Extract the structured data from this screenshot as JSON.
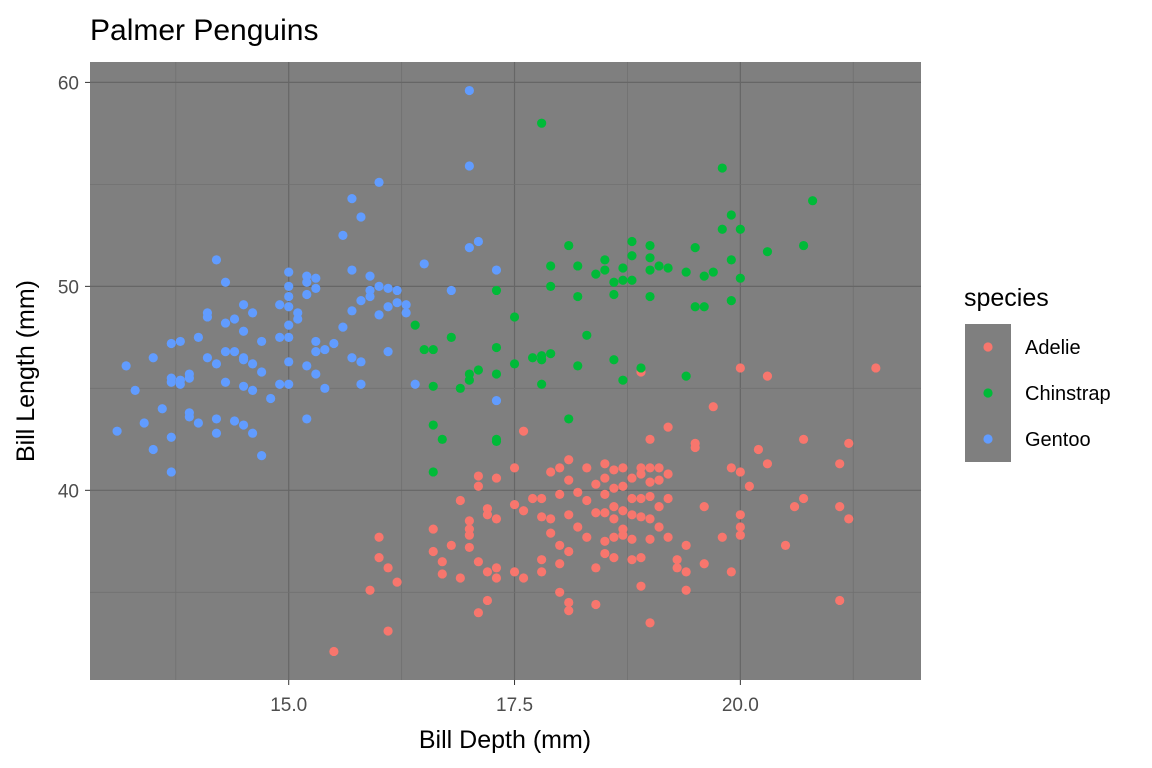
{
  "chart_data": {
    "type": "scatter",
    "title": "Palmer Penguins",
    "xlabel": "Bill Depth (mm)",
    "ylabel": "Bill Length (mm)",
    "xlim": [
      12.8,
      22.0
    ],
    "ylim": [
      30.7,
      61.0
    ],
    "x_ticks": [
      15.0,
      17.5,
      20.0
    ],
    "x_tick_labels": [
      "15.0",
      "17.5",
      "20.0"
    ],
    "y_ticks": [
      40,
      50,
      60
    ],
    "y_tick_labels": [
      "40",
      "50",
      "60"
    ],
    "grid": true,
    "panel_background": "#7f7f7f",
    "legend": {
      "title": "species",
      "position": "right",
      "background": "#7f7f7f"
    },
    "series": [
      {
        "name": "Adelie",
        "color": "#F8766D",
        "points": [
          [
            15.5,
            32.1
          ],
          [
            16.1,
            33.1
          ],
          [
            16.2,
            35.5
          ],
          [
            15.9,
            35.1
          ],
          [
            16.0,
            36.7
          ],
          [
            16.1,
            36.2
          ],
          [
            16.0,
            37.7
          ],
          [
            16.6,
            38.1
          ],
          [
            16.6,
            37.0
          ],
          [
            16.7,
            36.5
          ],
          [
            16.7,
            35.9
          ],
          [
            16.9,
            39.5
          ],
          [
            17.0,
            38.5
          ],
          [
            17.0,
            38.1
          ],
          [
            17.1,
            40.2
          ],
          [
            17.1,
            40.7
          ],
          [
            17.2,
            39.1
          ],
          [
            17.2,
            38.8
          ],
          [
            17.3,
            38.6
          ],
          [
            17.3,
            40.6
          ],
          [
            17.0,
            37.8
          ],
          [
            17.0,
            37.2
          ],
          [
            17.1,
            36.5
          ],
          [
            17.2,
            36.0
          ],
          [
            17.3,
            36.2
          ],
          [
            17.3,
            35.7
          ],
          [
            17.1,
            34.0
          ],
          [
            17.2,
            34.6
          ],
          [
            16.9,
            35.7
          ],
          [
            16.8,
            37.3
          ],
          [
            17.5,
            36.0
          ],
          [
            17.5,
            39.3
          ],
          [
            17.5,
            41.1
          ],
          [
            17.6,
            39.0
          ],
          [
            17.6,
            42.9
          ],
          [
            17.6,
            35.7
          ],
          [
            17.7,
            39.6
          ],
          [
            17.8,
            39.6
          ],
          [
            17.8,
            38.7
          ],
          [
            17.8,
            36.6
          ],
          [
            17.8,
            36.0
          ],
          [
            17.9,
            37.9
          ],
          [
            17.9,
            38.6
          ],
          [
            17.9,
            40.9
          ],
          [
            18.0,
            39.8
          ],
          [
            18.0,
            37.3
          ],
          [
            18.0,
            36.4
          ],
          [
            18.0,
            35.0
          ],
          [
            18.0,
            41.1
          ],
          [
            18.1,
            41.5
          ],
          [
            18.1,
            40.5
          ],
          [
            18.1,
            38.8
          ],
          [
            18.1,
            37.0
          ],
          [
            18.1,
            34.5
          ],
          [
            18.1,
            34.1
          ],
          [
            18.2,
            39.9
          ],
          [
            18.2,
            38.2
          ],
          [
            18.3,
            41.1
          ],
          [
            18.3,
            39.5
          ],
          [
            18.3,
            37.7
          ],
          [
            18.4,
            40.3
          ],
          [
            18.4,
            38.9
          ],
          [
            18.4,
            36.2
          ],
          [
            18.4,
            34.4
          ],
          [
            18.5,
            41.3
          ],
          [
            18.5,
            40.6
          ],
          [
            18.5,
            39.8
          ],
          [
            18.5,
            38.9
          ],
          [
            18.5,
            37.5
          ],
          [
            18.5,
            36.9
          ],
          [
            18.6,
            41.0
          ],
          [
            18.6,
            40.1
          ],
          [
            18.6,
            39.2
          ],
          [
            18.6,
            38.6
          ],
          [
            18.6,
            37.7
          ],
          [
            18.6,
            36.7
          ],
          [
            18.7,
            41.1
          ],
          [
            18.7,
            40.2
          ],
          [
            18.7,
            39.0
          ],
          [
            18.7,
            38.1
          ],
          [
            18.7,
            37.8
          ],
          [
            18.8,
            40.6
          ],
          [
            18.8,
            39.6
          ],
          [
            18.8,
            38.8
          ],
          [
            18.8,
            37.6
          ],
          [
            18.8,
            36.6
          ],
          [
            18.9,
            41.1
          ],
          [
            18.9,
            40.8
          ],
          [
            18.9,
            39.6
          ],
          [
            18.9,
            38.7
          ],
          [
            18.9,
            36.7
          ],
          [
            18.9,
            35.3
          ],
          [
            18.9,
            45.8
          ],
          [
            19.0,
            42.5
          ],
          [
            19.0,
            41.1
          ],
          [
            19.0,
            40.4
          ],
          [
            19.0,
            39.7
          ],
          [
            19.0,
            38.6
          ],
          [
            19.0,
            37.6
          ],
          [
            19.0,
            33.5
          ],
          [
            19.1,
            41.1
          ],
          [
            19.1,
            40.5
          ],
          [
            19.1,
            39.2
          ],
          [
            19.1,
            38.2
          ],
          [
            19.2,
            43.1
          ],
          [
            19.2,
            40.8
          ],
          [
            19.2,
            39.6
          ],
          [
            19.2,
            37.7
          ],
          [
            19.3,
            36.6
          ],
          [
            19.3,
            36.2
          ],
          [
            19.4,
            37.3
          ],
          [
            19.4,
            36.0
          ],
          [
            19.4,
            35.1
          ],
          [
            19.5,
            42.1
          ],
          [
            19.5,
            42.3
          ],
          [
            19.6,
            39.2
          ],
          [
            19.6,
            36.4
          ],
          [
            19.7,
            44.1
          ],
          [
            19.8,
            37.7
          ],
          [
            19.9,
            36.0
          ],
          [
            19.9,
            41.1
          ],
          [
            20.0,
            40.9
          ],
          [
            20.0,
            38.8
          ],
          [
            20.0,
            38.2
          ],
          [
            20.0,
            37.8
          ],
          [
            20.0,
            46.0
          ],
          [
            20.1,
            40.2
          ],
          [
            20.2,
            42.0
          ],
          [
            20.3,
            41.3
          ],
          [
            20.3,
            45.6
          ],
          [
            20.5,
            37.3
          ],
          [
            20.6,
            39.2
          ],
          [
            20.7,
            42.5
          ],
          [
            20.7,
            39.6
          ],
          [
            21.1,
            41.3
          ],
          [
            21.1,
            39.2
          ],
          [
            21.1,
            34.6
          ],
          [
            21.2,
            42.3
          ],
          [
            21.2,
            38.6
          ],
          [
            21.5,
            46.0
          ]
        ]
      },
      {
        "name": "Chinstrap",
        "color": "#00BA38",
        "points": [
          [
            16.4,
            48.1
          ],
          [
            16.5,
            46.9
          ],
          [
            16.6,
            46.9
          ],
          [
            16.6,
            45.1
          ],
          [
            16.6,
            43.2
          ],
          [
            16.6,
            40.9
          ],
          [
            16.7,
            42.5
          ],
          [
            16.8,
            47.5
          ],
          [
            16.9,
            45.0
          ],
          [
            17.0,
            45.4
          ],
          [
            17.0,
            45.7
          ],
          [
            17.1,
            45.9
          ],
          [
            17.3,
            49.8
          ],
          [
            17.3,
            47.0
          ],
          [
            17.3,
            45.7
          ],
          [
            17.3,
            42.4
          ],
          [
            17.3,
            42.5
          ],
          [
            17.5,
            48.5
          ],
          [
            17.5,
            46.2
          ],
          [
            17.7,
            46.5
          ],
          [
            17.8,
            46.4
          ],
          [
            17.8,
            46.6
          ],
          [
            17.8,
            45.2
          ],
          [
            17.8,
            58.0
          ],
          [
            17.9,
            46.7
          ],
          [
            17.9,
            50.0
          ],
          [
            17.9,
            51.0
          ],
          [
            18.1,
            52.0
          ],
          [
            18.1,
            43.5
          ],
          [
            18.2,
            51.0
          ],
          [
            18.2,
            49.5
          ],
          [
            18.2,
            46.1
          ],
          [
            18.3,
            47.6
          ],
          [
            18.4,
            50.6
          ],
          [
            18.5,
            50.8
          ],
          [
            18.5,
            51.3
          ],
          [
            18.6,
            50.2
          ],
          [
            18.6,
            49.6
          ],
          [
            18.6,
            46.4
          ],
          [
            18.7,
            50.9
          ],
          [
            18.7,
            50.3
          ],
          [
            18.7,
            45.4
          ],
          [
            18.8,
            52.2
          ],
          [
            18.8,
            51.5
          ],
          [
            18.8,
            50.3
          ],
          [
            18.9,
            46.0
          ],
          [
            19.0,
            52.0
          ],
          [
            19.0,
            51.4
          ],
          [
            19.0,
            50.8
          ],
          [
            19.0,
            49.5
          ],
          [
            19.1,
            51.0
          ],
          [
            19.2,
            50.9
          ],
          [
            19.4,
            50.7
          ],
          [
            19.4,
            45.6
          ],
          [
            19.5,
            51.9
          ],
          [
            19.5,
            49.0
          ],
          [
            19.6,
            50.5
          ],
          [
            19.6,
            49.0
          ],
          [
            19.7,
            50.7
          ],
          [
            19.8,
            52.8
          ],
          [
            19.8,
            55.8
          ],
          [
            19.9,
            53.5
          ],
          [
            19.9,
            51.3
          ],
          [
            19.9,
            49.3
          ],
          [
            20.0,
            52.8
          ],
          [
            20.0,
            50.4
          ],
          [
            20.3,
            51.7
          ],
          [
            20.7,
            52.0
          ],
          [
            20.8,
            54.2
          ]
        ]
      },
      {
        "name": "Gentoo",
        "color": "#619CFF",
        "points": [
          [
            13.1,
            42.9
          ],
          [
            13.2,
            46.1
          ],
          [
            13.3,
            44.9
          ],
          [
            13.4,
            43.3
          ],
          [
            13.5,
            46.5
          ],
          [
            13.5,
            42.0
          ],
          [
            13.6,
            44.0
          ],
          [
            13.7,
            47.2
          ],
          [
            13.7,
            45.5
          ],
          [
            13.7,
            45.3
          ],
          [
            13.7,
            42.6
          ],
          [
            13.7,
            40.9
          ],
          [
            13.8,
            47.3
          ],
          [
            13.8,
            45.4
          ],
          [
            13.8,
            45.2
          ],
          [
            13.9,
            45.7
          ],
          [
            13.9,
            45.5
          ],
          [
            13.9,
            43.8
          ],
          [
            13.9,
            43.6
          ],
          [
            14.0,
            47.5
          ],
          [
            14.0,
            43.3
          ],
          [
            14.1,
            46.5
          ],
          [
            14.1,
            48.7
          ],
          [
            14.1,
            48.5
          ],
          [
            14.2,
            46.2
          ],
          [
            14.2,
            43.5
          ],
          [
            14.2,
            42.8
          ],
          [
            14.2,
            51.3
          ],
          [
            14.3,
            46.8
          ],
          [
            14.3,
            48.2
          ],
          [
            14.3,
            45.3
          ],
          [
            14.3,
            50.2
          ],
          [
            14.4,
            48.4
          ],
          [
            14.4,
            46.8
          ],
          [
            14.4,
            43.4
          ],
          [
            14.5,
            45.1
          ],
          [
            14.5,
            46.4
          ],
          [
            14.5,
            46.5
          ],
          [
            14.5,
            47.8
          ],
          [
            14.5,
            49.1
          ],
          [
            14.5,
            43.2
          ],
          [
            14.6,
            46.2
          ],
          [
            14.6,
            44.9
          ],
          [
            14.6,
            42.8
          ],
          [
            14.6,
            48.7
          ],
          [
            14.7,
            45.8
          ],
          [
            14.7,
            47.3
          ],
          [
            14.7,
            41.7
          ],
          [
            14.8,
            44.5
          ],
          [
            14.9,
            45.2
          ],
          [
            14.9,
            47.5
          ],
          [
            14.9,
            49.1
          ],
          [
            15.0,
            45.2
          ],
          [
            15.0,
            46.3
          ],
          [
            15.0,
            48.1
          ],
          [
            15.0,
            49.0
          ],
          [
            15.0,
            49.5
          ],
          [
            15.0,
            50.0
          ],
          [
            15.0,
            50.7
          ],
          [
            15.0,
            47.5
          ],
          [
            15.1,
            48.4
          ],
          [
            15.1,
            48.7
          ],
          [
            15.2,
            49.6
          ],
          [
            15.2,
            50.2
          ],
          [
            15.2,
            50.5
          ],
          [
            15.2,
            46.1
          ],
          [
            15.2,
            43.5
          ],
          [
            15.3,
            45.7
          ],
          [
            15.3,
            46.8
          ],
          [
            15.3,
            47.3
          ],
          [
            15.3,
            49.9
          ],
          [
            15.3,
            50.4
          ],
          [
            15.4,
            46.9
          ],
          [
            15.4,
            45.0
          ],
          [
            15.5,
            47.2
          ],
          [
            15.6,
            48.0
          ],
          [
            15.6,
            52.5
          ],
          [
            15.7,
            46.5
          ],
          [
            15.7,
            48.8
          ],
          [
            15.7,
            50.8
          ],
          [
            15.7,
            54.3
          ],
          [
            15.8,
            49.3
          ],
          [
            15.8,
            46.3
          ],
          [
            15.8,
            45.2
          ],
          [
            15.8,
            53.4
          ],
          [
            15.9,
            49.5
          ],
          [
            15.9,
            50.5
          ],
          [
            15.9,
            49.8
          ],
          [
            16.0,
            48.6
          ],
          [
            16.0,
            50.0
          ],
          [
            16.0,
            55.1
          ],
          [
            16.1,
            49.9
          ],
          [
            16.1,
            49.0
          ],
          [
            16.1,
            46.8
          ],
          [
            16.2,
            49.8
          ],
          [
            16.2,
            49.2
          ],
          [
            16.3,
            49.1
          ],
          [
            16.3,
            48.7
          ],
          [
            16.4,
            45.2
          ],
          [
            16.5,
            51.1
          ],
          [
            16.8,
            49.8
          ],
          [
            17.0,
            59.6
          ],
          [
            17.0,
            55.9
          ],
          [
            17.0,
            51.9
          ],
          [
            17.1,
            52.2
          ],
          [
            17.3,
            50.8
          ],
          [
            17.3,
            44.4
          ]
        ]
      }
    ]
  }
}
